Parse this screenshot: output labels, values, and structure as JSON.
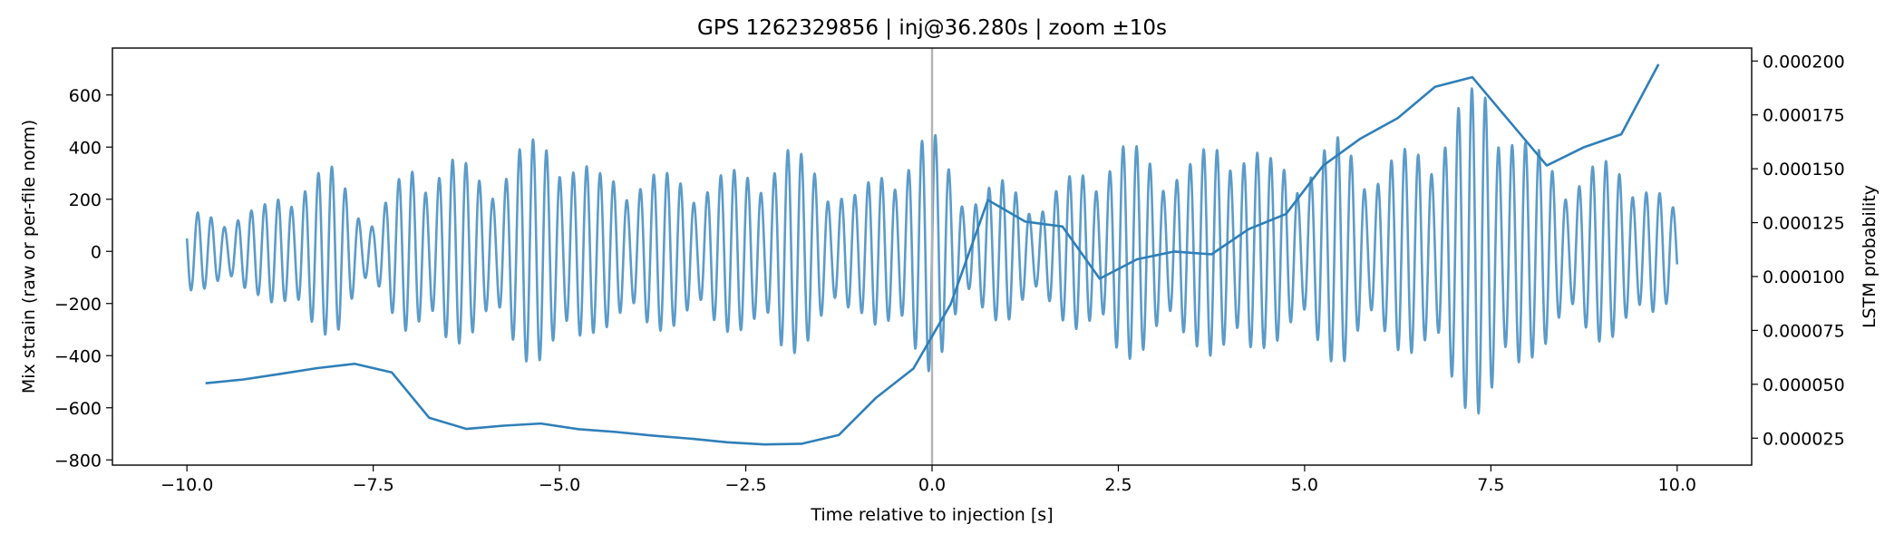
{
  "chart_data": {
    "type": "line",
    "title": "GPS 1262329856 | inj@36.280s | zoom ±10s",
    "xlabel": "Time relative to injection [s]",
    "ylabel_left": "Mix strain (raw or per-file norm)",
    "ylabel_right": "LSTM probability",
    "xlim": [
      -11.0,
      11.0
    ],
    "ylim_left": [
      -820,
      780
    ],
    "ylim_right": [
      1.25e-05,
      0.000206
    ],
    "xticks": [
      -10.0,
      -7.5,
      -5.0,
      -2.5,
      0.0,
      2.5,
      5.0,
      7.5,
      10.0
    ],
    "xtick_labels": [
      "−10.0",
      "−7.5",
      "−5.0",
      "−2.5",
      "0.0",
      "2.5",
      "5.0",
      "7.5",
      "10.0"
    ],
    "yticks_left": [
      -800,
      -600,
      -400,
      -200,
      0,
      200,
      400,
      600
    ],
    "ytick_labels_left": [
      "−800",
      "−600",
      "−400",
      "−200",
      "0",
      "200",
      "400",
      "600"
    ],
    "yticks_right": [
      2.5e-05,
      5e-05,
      7.5e-05,
      0.0001,
      0.000125,
      0.00015,
      0.000175,
      0.0002
    ],
    "ytick_labels_right": [
      "0.000025",
      "0.000050",
      "0.000075",
      "0.000100",
      "0.000125",
      "0.000150",
      "0.000175",
      "0.000200"
    ],
    "injection_marker_x": 0.0,
    "colors": {
      "strain": "#5b9bc9",
      "prob": "#2f7fb8",
      "marker": "#b3b3b3"
    },
    "series": [
      {
        "name": "Mix strain",
        "axis": "left",
        "description": "dense oscillatory waveform, envelope amplitude per 0.5 s window",
        "x": [
          -10.0,
          -9.5,
          -9.0,
          -8.5,
          -8.0,
          -7.5,
          -7.0,
          -6.5,
          -6.0,
          -5.5,
          -5.0,
          -4.5,
          -4.0,
          -3.5,
          -3.0,
          -2.5,
          -2.0,
          -1.5,
          -1.0,
          -0.5,
          0.0,
          0.5,
          1.0,
          1.5,
          2.0,
          2.5,
          3.0,
          3.5,
          4.0,
          4.5,
          5.0,
          5.5,
          6.0,
          6.5,
          7.0,
          7.5,
          8.0,
          8.5,
          9.0,
          9.5,
          10.0
        ],
        "envelope": [
          150,
          150,
          170,
          300,
          330,
          120,
          350,
          380,
          300,
          420,
          460,
          300,
          320,
          300,
          300,
          320,
          420,
          330,
          220,
          380,
          470,
          230,
          280,
          200,
          330,
          430,
          380,
          350,
          500,
          360,
          360,
          450,
          340,
          420,
          560,
          700,
          420,
          320,
          350,
          330,
          150
        ],
        "carrier_period_s": 0.18
      },
      {
        "name": "LSTM probability",
        "axis": "right",
        "x": [
          -9.75,
          -9.25,
          -8.75,
          -8.25,
          -7.75,
          -7.25,
          -6.75,
          -6.25,
          -5.75,
          -5.25,
          -4.75,
          -4.25,
          -3.75,
          -3.25,
          -2.75,
          -2.25,
          -1.75,
          -1.25,
          -0.75,
          -0.25,
          0.25,
          0.75,
          1.25,
          1.75,
          2.25,
          2.75,
          3.25,
          3.75,
          4.25,
          4.75,
          5.25,
          5.75,
          6.25,
          6.75,
          7.25,
          7.75,
          8.25,
          8.75,
          9.25,
          9.75
        ],
        "values": [
          5.05e-05,
          5.22e-05,
          5.48e-05,
          5.75e-05,
          5.95e-05,
          5.55e-05,
          3.45e-05,
          2.93e-05,
          3.08e-05,
          3.18e-05,
          2.92e-05,
          2.79e-05,
          2.62e-05,
          2.48e-05,
          2.31e-05,
          2.21e-05,
          2.24e-05,
          2.65e-05,
          4.38e-05,
          5.73e-05,
          8.72e-05,
          0.0001355,
          0.0001255,
          0.0001232,
          9.9e-05,
          0.000108,
          0.0001116,
          0.0001103,
          0.000122,
          0.000129,
          0.0001515,
          0.000164,
          0.0001735,
          0.000188,
          0.0001925,
          0.000172,
          0.0001515,
          0.00016,
          0.000166,
          0.0001985
        ]
      }
    ]
  }
}
